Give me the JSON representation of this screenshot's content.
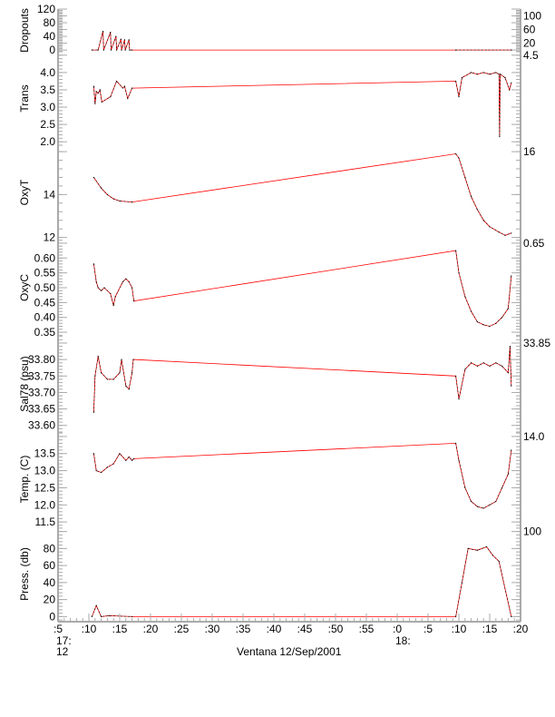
{
  "chart_data": {
    "type": "line",
    "title": "",
    "xlabel": "Ventana 12/Sep/2001",
    "x_ticks": [
      ":5",
      ":10",
      ":15",
      ":20",
      ":25",
      ":30",
      ":35",
      ":40",
      ":45",
      ":50",
      ":55",
      ":0",
      ":5",
      ":10",
      ":15",
      ":20"
    ],
    "x_tick_times": [
      "17:05",
      "17:10",
      "17:15",
      "17:20",
      "17:25",
      "17:30",
      "17:35",
      "17:40",
      "17:45",
      "17:50",
      "17:55",
      "18:00",
      "18:05",
      "18:10",
      "18:15",
      "18:20"
    ],
    "x_hour_labels": [
      {
        "time": "17:05",
        "label": "17:"
      },
      {
        "time": "18:00",
        "label": "18:"
      }
    ],
    "x_day_label": {
      "time": "17:05",
      "label": "12"
    },
    "xlim": [
      "17:05",
      "18:20"
    ],
    "colors": {
      "series": "#ff0000",
      "overlay": "#000000",
      "axis": "#aaaaaa"
    },
    "panels": [
      {
        "ylabel": "Dropouts",
        "ylim": [
          -5,
          120
        ],
        "yticks": [
          "0",
          "20",
          "40",
          "60",
          "80",
          "100",
          "120"
        ],
        "t": [
          "17:10.5",
          "17:11.5",
          "17:12.3",
          "17:12.4",
          "17:13.5",
          "17:13.6",
          "17:14.4",
          "17:14.5",
          "17:15.2",
          "17:15.3",
          "17:15.8",
          "17:15.9",
          "17:16.5",
          "17:16.6",
          "17:17",
          "18:09.5",
          "18:18.5"
        ],
        "y": [
          0,
          0,
          55,
          0,
          52,
          0,
          40,
          0,
          32,
          0,
          30,
          0,
          30,
          0,
          0,
          0,
          0
        ]
      },
      {
        "ylabel": "Trans",
        "ylim": [
          1.9,
          4.6
        ],
        "yticks": [
          "2.0",
          "2.5",
          "3.0",
          "3.5",
          "4.0",
          "4.5"
        ],
        "t": [
          "17:10.8",
          "17:11",
          "17:11.2",
          "17:11.5",
          "17:11.8",
          "17:12.1",
          "17:13.5",
          "17:14.5",
          "17:15.5",
          "17:15.8",
          "17:16.3",
          "17:17",
          "18:09.5",
          "18:10",
          "18:10.5",
          "18:12",
          "18:13",
          "18:14",
          "18:15",
          "18:16",
          "18:16.5",
          "18:16.6",
          "18:16.7",
          "18:17.5",
          "18:18.2",
          "18:18.5"
        ],
        "y": [
          3.6,
          3.1,
          3.45,
          3.4,
          3.5,
          3.15,
          3.3,
          3.75,
          3.55,
          3.6,
          3.25,
          3.55,
          3.75,
          3.3,
          3.85,
          4.0,
          3.95,
          4.0,
          3.95,
          4.0,
          3.95,
          2.15,
          3.95,
          3.85,
          3.5,
          3.7
        ]
      },
      {
        "ylabel": "OxyT",
        "ylim": [
          11.9,
          16.3
        ],
        "yticks": [
          "12",
          "14",
          "16"
        ],
        "t": [
          "17:10.8",
          "17:12",
          "17:13",
          "17:14",
          "17:15",
          "17:17",
          "18:09.5",
          "18:10",
          "18:11",
          "18:12",
          "18:13",
          "18:14",
          "18:15",
          "18:16.5",
          "18:17.5",
          "18:18.5"
        ],
        "y": [
          14.8,
          14.3,
          14.0,
          13.8,
          13.7,
          13.65,
          15.9,
          15.7,
          14.8,
          13.9,
          13.3,
          12.8,
          12.5,
          12.25,
          12.1,
          12.2
        ]
      },
      {
        "ylabel": "OxyC",
        "ylim": [
          0.338,
          0.662
        ],
        "yticks": [
          "0.35",
          "0.40",
          "0.45",
          "0.50",
          "0.55",
          "0.60",
          "0.65"
        ],
        "t": [
          "17:10.8",
          "17:11.2",
          "17:11.5",
          "17:12",
          "17:12.5",
          "17:13.5",
          "17:14",
          "17:14.3",
          "17:15.5",
          "17:16",
          "17:16.5",
          "17:17",
          "17:17.3",
          "18:09.5",
          "18:10",
          "18:11",
          "18:12",
          "18:13",
          "18:14",
          "18:15",
          "18:16",
          "18:17",
          "18:18",
          "18:18.5"
        ],
        "y": [
          0.58,
          0.52,
          0.5,
          0.49,
          0.5,
          0.48,
          0.44,
          0.47,
          0.52,
          0.53,
          0.52,
          0.5,
          0.455,
          0.625,
          0.55,
          0.47,
          0.42,
          0.385,
          0.375,
          0.37,
          0.38,
          0.4,
          0.43,
          0.54
        ]
      },
      {
        "ylabel": "Sal78 (psu)",
        "ylim": [
          33.58,
          33.872
        ],
        "yticks": [
          "33.60",
          "33.65",
          "33.70",
          "33.75",
          "33.80",
          "33.85"
        ],
        "t": [
          "17:10.8",
          "17:11",
          "17:11.5",
          "17:12",
          "17:13",
          "17:14",
          "17:15",
          "17:15.3",
          "17:16",
          "17:16.5",
          "17:17",
          "17:17.2",
          "18:09.5",
          "18:10",
          "18:11",
          "18:12",
          "18:13",
          "18:14",
          "18:15",
          "18:16",
          "18:17",
          "18:18",
          "18:18.3",
          "18:18.5"
        ],
        "y": [
          33.64,
          33.75,
          33.81,
          33.76,
          33.74,
          33.74,
          33.76,
          33.8,
          33.72,
          33.71,
          33.76,
          33.8,
          33.75,
          33.68,
          33.77,
          33.79,
          33.78,
          33.79,
          33.78,
          33.79,
          33.78,
          33.76,
          33.84,
          33.72
        ]
      },
      {
        "ylabel": "Temp. (C)",
        "ylim": [
          11.37,
          14.13
        ],
        "yticks": [
          "11.5",
          "12.0",
          "12.5",
          "13.0",
          "13.5",
          "14.0"
        ],
        "t": [
          "17:10.8",
          "17:11.2",
          "17:12",
          "17:13",
          "17:14",
          "17:15",
          "17:16",
          "17:16.5",
          "17:17",
          "17:17.3",
          "18:09.5",
          "18:10",
          "18:11",
          "18:12",
          "18:13",
          "18:14",
          "18:15",
          "18:16",
          "18:17",
          "18:18",
          "18:18.5"
        ],
        "y": [
          13.5,
          13.0,
          12.95,
          13.1,
          13.2,
          13.5,
          13.3,
          13.4,
          13.3,
          13.35,
          13.8,
          13.3,
          12.5,
          12.1,
          11.95,
          11.9,
          12.0,
          12.1,
          12.5,
          12.9,
          13.6
        ]
      },
      {
        "ylabel": "Press. (db)",
        "ylim": [
          -6,
          106
        ],
        "yticks": [
          "0",
          "20",
          "40",
          "60",
          "80",
          "100"
        ],
        "t": [
          "17:10.5",
          "17:11.2",
          "17:12",
          "17:13.3",
          "17:17",
          "18:09.5",
          "18:10.5",
          "18:11.5",
          "18:13",
          "18:14.5",
          "18:15.5",
          "18:16.5",
          "18:18.5"
        ],
        "y": [
          0,
          13,
          0,
          1,
          0,
          0,
          40,
          80,
          78,
          82,
          72,
          65,
          0
        ]
      }
    ]
  }
}
